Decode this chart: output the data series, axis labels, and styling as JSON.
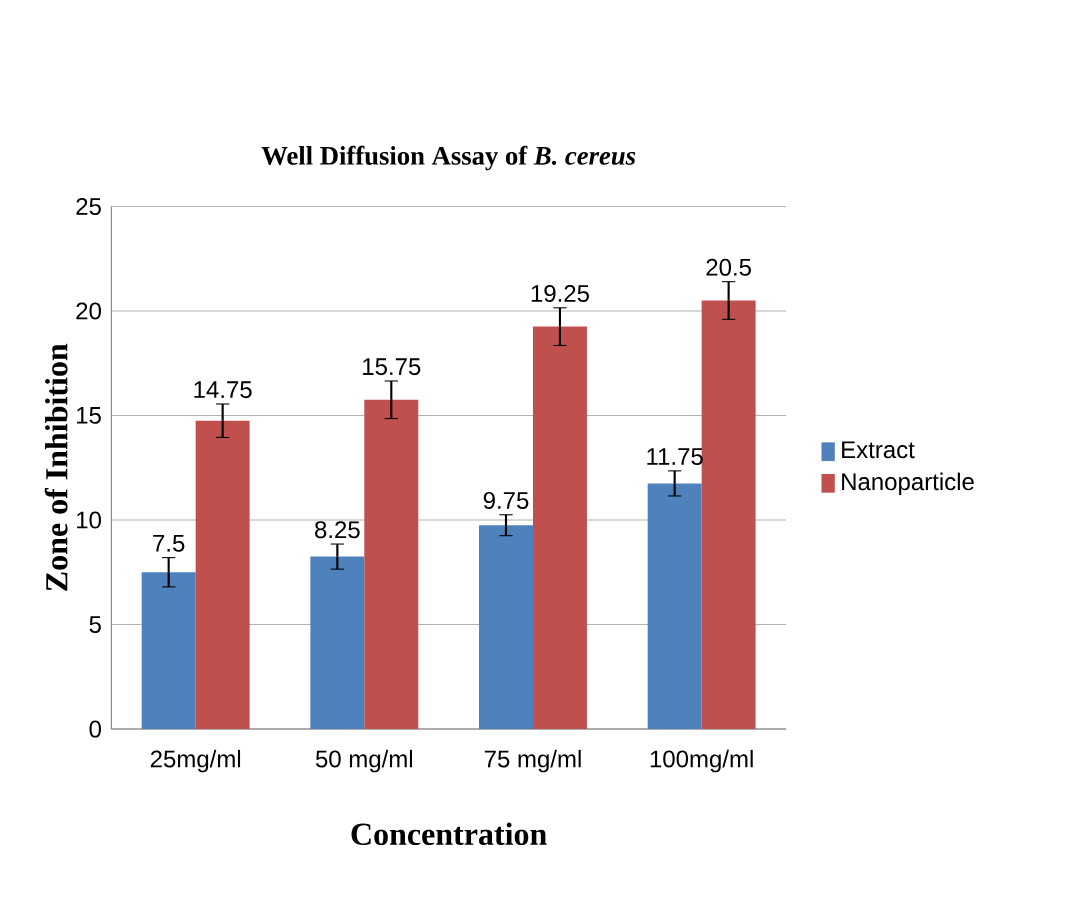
{
  "chart_data": {
    "type": "bar",
    "title": "Well Diffusion Assay of *B. cereus*",
    "xlabel": "Concentration",
    "ylabel": "Zone of Inhibition",
    "categories": [
      "25mg/ml",
      "50 mg/ml",
      "75 mg/ml",
      "100mg/ml"
    ],
    "series": [
      {
        "name": "Extract",
        "color": "#4f81bd",
        "values": [
          7.5,
          8.25,
          9.75,
          11.75
        ],
        "errors": [
          0.7,
          0.6,
          0.5,
          0.6
        ],
        "value_labels": [
          "7.5",
          "8.25",
          "9.75",
          "11.75"
        ]
      },
      {
        "name": "Nanoparticle",
        "color": "#c0504d",
        "values": [
          14.75,
          15.75,
          19.25,
          20.5
        ],
        "errors": [
          0.8,
          0.9,
          0.9,
          0.9
        ],
        "value_labels": [
          "14.75",
          "15.75",
          "19.25",
          "20.5"
        ]
      }
    ],
    "ylim": [
      0,
      25
    ],
    "yticks": [
      0,
      5,
      10,
      15,
      20,
      25
    ],
    "grid": "y",
    "legend": "right"
  }
}
